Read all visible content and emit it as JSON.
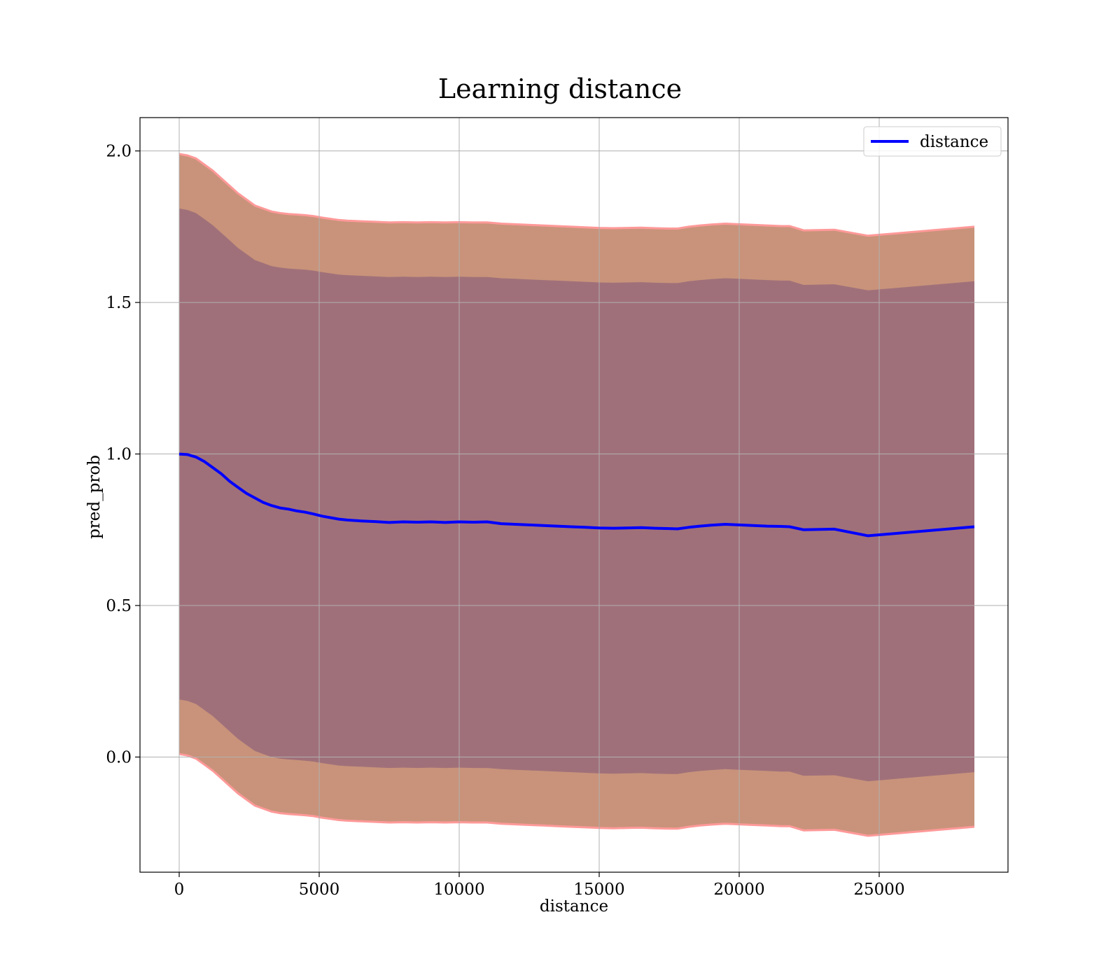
{
  "chart_data": {
    "type": "line",
    "title": "Learning distance",
    "xlabel": "distance",
    "ylabel": "pred_prob",
    "xlim": [
      -1400,
      29600
    ],
    "ylim": [
      -0.38,
      2.11
    ],
    "xticks": [
      0,
      5000,
      10000,
      15000,
      20000,
      25000
    ],
    "xtick_labels": [
      "0",
      "5000",
      "10000",
      "15000",
      "20000",
      "25000"
    ],
    "yticks": [
      0.0,
      0.5,
      1.0,
      1.5,
      2.0
    ],
    "ytick_labels": [
      "0.0",
      "0.5",
      "1.0",
      "1.5",
      "2.0"
    ],
    "grid": true,
    "legend": {
      "placement": "top-right",
      "entries": [
        "distance"
      ]
    },
    "colors": {
      "line": "#0000ff",
      "outer_band": "#c8937a",
      "inner_band": "#a0707a",
      "outer_edge": "#ff9999"
    },
    "series": [
      {
        "name": "distance",
        "x": [
          0,
          300,
          600,
          900,
          1200,
          1500,
          1800,
          2100,
          2400,
          2700,
          3000,
          3300,
          3600,
          3900,
          4200,
          4500,
          4800,
          5100,
          5400,
          5700,
          6000,
          6500,
          7000,
          7500,
          8000,
          8500,
          9000,
          9500,
          10000,
          10500,
          11000,
          11500,
          12000,
          12500,
          13000,
          13500,
          14000,
          14500,
          15000,
          15500,
          16000,
          16500,
          17000,
          17500,
          17800,
          18200,
          18600,
          19000,
          19500,
          20000,
          20500,
          21000,
          21500,
          21800,
          22300,
          23400,
          24600,
          28400
        ],
        "y": [
          1.0,
          0.998,
          0.99,
          0.975,
          0.955,
          0.935,
          0.91,
          0.89,
          0.87,
          0.855,
          0.84,
          0.83,
          0.822,
          0.818,
          0.812,
          0.808,
          0.802,
          0.795,
          0.79,
          0.785,
          0.782,
          0.779,
          0.777,
          0.774,
          0.776,
          0.775,
          0.776,
          0.774,
          0.776,
          0.775,
          0.776,
          0.77,
          0.768,
          0.766,
          0.764,
          0.762,
          0.76,
          0.758,
          0.756,
          0.755,
          0.756,
          0.757,
          0.755,
          0.754,
          0.753,
          0.758,
          0.762,
          0.765,
          0.768,
          0.766,
          0.764,
          0.762,
          0.761,
          0.76,
          0.75,
          0.752,
          0.73,
          0.76
        ]
      }
    ],
    "bands": [
      {
        "label": "outer",
        "x": [
          0,
          300,
          600,
          900,
          1200,
          1500,
          1800,
          2100,
          2400,
          2700,
          3000,
          3300,
          3600,
          3900,
          4200,
          4500,
          4800,
          5100,
          5400,
          5700,
          6000,
          6500,
          7000,
          7500,
          8000,
          8500,
          9000,
          9500,
          10000,
          10500,
          11000,
          11500,
          12000,
          12500,
          13000,
          13500,
          14000,
          14500,
          15000,
          15500,
          16000,
          16500,
          17000,
          17500,
          17800,
          18200,
          18600,
          19000,
          19500,
          20000,
          20500,
          21000,
          21500,
          21800,
          22300,
          23400,
          24600,
          28400
        ],
        "upper": [
          1.99,
          1.985,
          1.975,
          1.955,
          1.935,
          1.91,
          1.885,
          1.86,
          1.84,
          1.82,
          1.81,
          1.8,
          1.795,
          1.792,
          1.79,
          1.788,
          1.785,
          1.78,
          1.776,
          1.772,
          1.77,
          1.768,
          1.766,
          1.764,
          1.765,
          1.764,
          1.765,
          1.764,
          1.765,
          1.764,
          1.764,
          1.76,
          1.758,
          1.756,
          1.754,
          1.752,
          1.75,
          1.748,
          1.746,
          1.745,
          1.746,
          1.747,
          1.745,
          1.744,
          1.744,
          1.75,
          1.754,
          1.757,
          1.76,
          1.758,
          1.756,
          1.754,
          1.752,
          1.752,
          1.738,
          1.74,
          1.72,
          1.75
        ],
        "lower": [
          0.01,
          0.005,
          -0.005,
          -0.025,
          -0.045,
          -0.07,
          -0.095,
          -0.12,
          -0.14,
          -0.16,
          -0.17,
          -0.18,
          -0.185,
          -0.188,
          -0.19,
          -0.192,
          -0.195,
          -0.2,
          -0.204,
          -0.208,
          -0.21,
          -0.212,
          -0.214,
          -0.216,
          -0.215,
          -0.216,
          -0.215,
          -0.216,
          -0.215,
          -0.216,
          -0.216,
          -0.22,
          -0.222,
          -0.224,
          -0.226,
          -0.228,
          -0.23,
          -0.232,
          -0.234,
          -0.235,
          -0.234,
          -0.233,
          -0.235,
          -0.236,
          -0.236,
          -0.23,
          -0.226,
          -0.223,
          -0.22,
          -0.222,
          -0.224,
          -0.226,
          -0.228,
          -0.228,
          -0.242,
          -0.24,
          -0.26,
          -0.23
        ]
      },
      {
        "label": "inner",
        "x": [
          0,
          300,
          600,
          900,
          1200,
          1500,
          1800,
          2100,
          2400,
          2700,
          3000,
          3300,
          3600,
          3900,
          4200,
          4500,
          4800,
          5100,
          5400,
          5700,
          6000,
          6500,
          7000,
          7500,
          8000,
          8500,
          9000,
          9500,
          10000,
          10500,
          11000,
          11500,
          12000,
          12500,
          13000,
          13500,
          14000,
          14500,
          15000,
          15500,
          16000,
          16500,
          17000,
          17500,
          17800,
          18200,
          18600,
          19000,
          19500,
          20000,
          20500,
          21000,
          21500,
          21800,
          22300,
          23400,
          24600,
          28400
        ],
        "upper": [
          1.81,
          1.805,
          1.795,
          1.775,
          1.755,
          1.73,
          1.705,
          1.68,
          1.66,
          1.64,
          1.63,
          1.62,
          1.615,
          1.612,
          1.61,
          1.608,
          1.605,
          1.6,
          1.596,
          1.592,
          1.59,
          1.588,
          1.586,
          1.584,
          1.585,
          1.584,
          1.585,
          1.584,
          1.585,
          1.584,
          1.584,
          1.58,
          1.578,
          1.576,
          1.574,
          1.572,
          1.57,
          1.568,
          1.566,
          1.565,
          1.566,
          1.567,
          1.565,
          1.564,
          1.564,
          1.57,
          1.574,
          1.577,
          1.58,
          1.578,
          1.576,
          1.574,
          1.572,
          1.572,
          1.558,
          1.56,
          1.54,
          1.57
        ],
        "lower": [
          0.19,
          0.185,
          0.175,
          0.155,
          0.135,
          0.11,
          0.085,
          0.06,
          0.04,
          0.02,
          0.01,
          0.0,
          -0.005,
          -0.008,
          -0.01,
          -0.012,
          -0.015,
          -0.02,
          -0.024,
          -0.028,
          -0.03,
          -0.032,
          -0.034,
          -0.036,
          -0.035,
          -0.036,
          -0.035,
          -0.036,
          -0.035,
          -0.036,
          -0.036,
          -0.04,
          -0.042,
          -0.044,
          -0.046,
          -0.048,
          -0.05,
          -0.052,
          -0.054,
          -0.055,
          -0.054,
          -0.053,
          -0.055,
          -0.056,
          -0.056,
          -0.05,
          -0.046,
          -0.043,
          -0.04,
          -0.042,
          -0.044,
          -0.046,
          -0.048,
          -0.048,
          -0.062,
          -0.06,
          -0.08,
          -0.05
        ]
      }
    ]
  }
}
